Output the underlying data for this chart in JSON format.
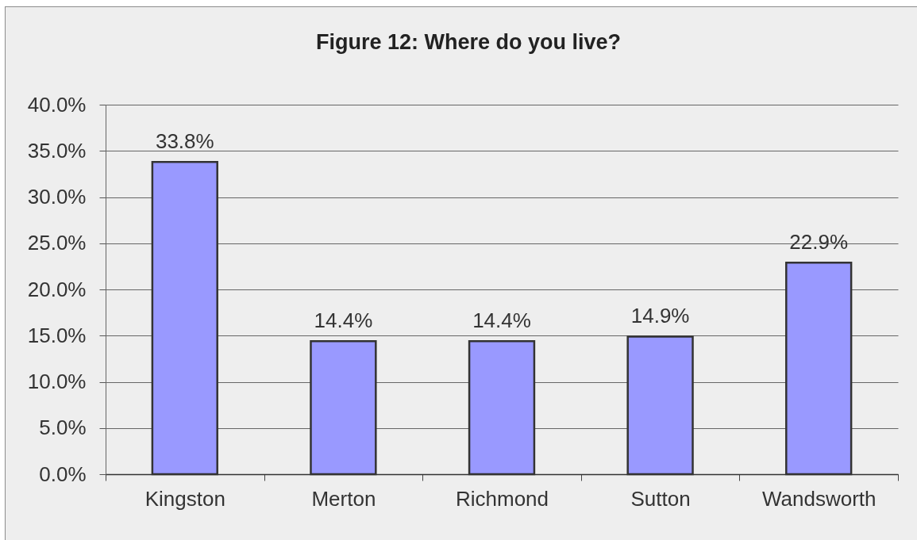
{
  "chart_data": {
    "type": "bar",
    "title": "Figure 12: Where do you live?",
    "categories": [
      "Kingston",
      "Merton",
      "Richmond",
      "Sutton",
      "Wandsworth"
    ],
    "values": [
      33.8,
      14.4,
      14.4,
      14.9,
      22.9
    ],
    "value_labels": [
      "33.8%",
      "14.4%",
      "14.4%",
      "14.9%",
      "22.9%"
    ],
    "color": "#9999ff",
    "ylim": [
      0,
      40
    ],
    "yticks": [
      {
        "value": 0,
        "label": "0.0%"
      },
      {
        "value": 5,
        "label": "5.0%"
      },
      {
        "value": 10,
        "label": "10.0%"
      },
      {
        "value": 15,
        "label": "15.0%"
      },
      {
        "value": 20,
        "label": "20.0%"
      },
      {
        "value": 25,
        "label": "25.0%"
      },
      {
        "value": 30,
        "label": "30.0%"
      },
      {
        "value": 35,
        "label": "35.0%"
      },
      {
        "value": 40,
        "label": "40.0%"
      }
    ],
    "grid": "y"
  }
}
